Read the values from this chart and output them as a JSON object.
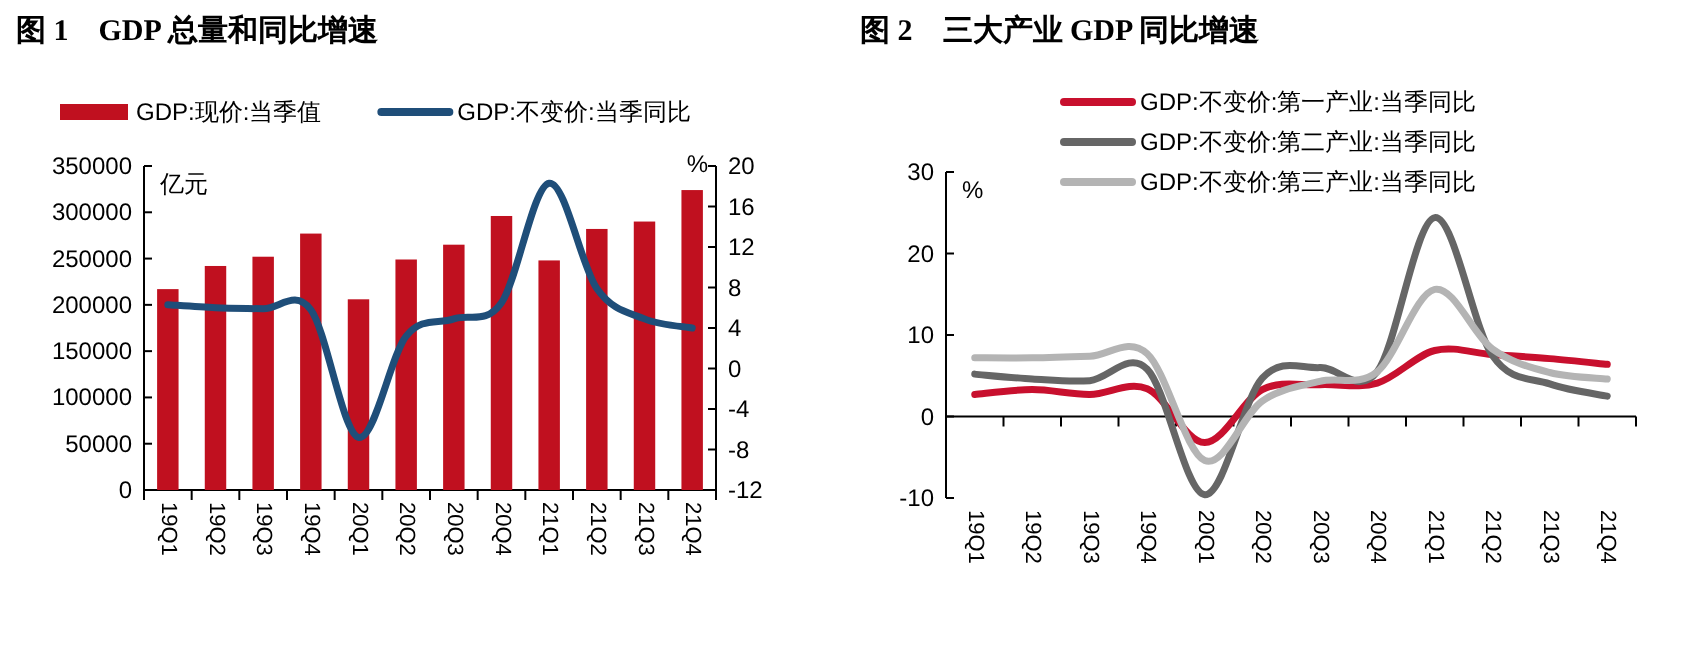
{
  "chart_data": [
    {
      "type": "bar",
      "title": "图 1　GDP 总量和同比增速",
      "ylabel": "亿元",
      "y2label": "%",
      "categories": [
        "19Q1",
        "19Q2",
        "19Q3",
        "19Q4",
        "20Q1",
        "20Q2",
        "20Q3",
        "20Q4",
        "21Q1",
        "21Q2",
        "21Q3",
        "21Q4"
      ],
      "series": [
        {
          "name": "GDP:现价:当季值",
          "color": "#c0101f",
          "values": [
            217000,
            242000,
            252000,
            277000,
            206000,
            249000,
            265000,
            296000,
            248000,
            282000,
            290000,
            324000
          ]
        },
        {
          "name": "GDP:不变价:当季同比",
          "type": "line",
          "axis": "y2",
          "color": "#1f4e79",
          "values": [
            6.3,
            6.0,
            5.9,
            5.8,
            -6.8,
            3.2,
            4.9,
            6.5,
            18.3,
            7.9,
            4.9,
            4.0
          ]
        }
      ],
      "ylim": [
        0,
        350000
      ],
      "yticks": [
        0,
        50000,
        100000,
        150000,
        200000,
        250000,
        300000,
        350000
      ],
      "y2lim": [
        -12,
        20
      ],
      "y2ticks": [
        -12,
        -8,
        -4,
        0,
        4,
        8,
        12,
        16,
        20
      ],
      "legend": "top"
    },
    {
      "type": "line",
      "title": "图 2　三大产业 GDP 同比增速",
      "ylabel": "%",
      "categories": [
        "19Q1",
        "19Q2",
        "19Q3",
        "19Q4",
        "20Q1",
        "20Q2",
        "20Q3",
        "20Q4",
        "21Q1",
        "21Q2",
        "21Q3",
        "21Q4"
      ],
      "series": [
        {
          "name": "GDP:不变价:第一产业:当季同比",
          "color": "#c8102e",
          "values": [
            2.7,
            3.3,
            2.7,
            3.4,
            -3.2,
            3.3,
            3.9,
            4.1,
            8.1,
            7.6,
            7.1,
            6.4
          ]
        },
        {
          "name": "GDP:不变价:第二产业:当季同比",
          "color": "#666666",
          "values": [
            5.2,
            4.6,
            4.4,
            5.8,
            -9.6,
            4.7,
            6.0,
            5.5,
            24.4,
            7.5,
            4.0,
            2.5
          ]
        },
        {
          "name": "GDP:不变价:第三产业:当季同比",
          "color": "#b4b4b4",
          "values": [
            7.2,
            7.2,
            7.4,
            7.7,
            -5.4,
            1.9,
            4.3,
            5.5,
            15.6,
            8.3,
            5.4,
            4.6
          ]
        }
      ],
      "ylim": [
        -10,
        30
      ],
      "yticks": [
        -10,
        0,
        10,
        20,
        30
      ],
      "legend": "top right"
    }
  ]
}
